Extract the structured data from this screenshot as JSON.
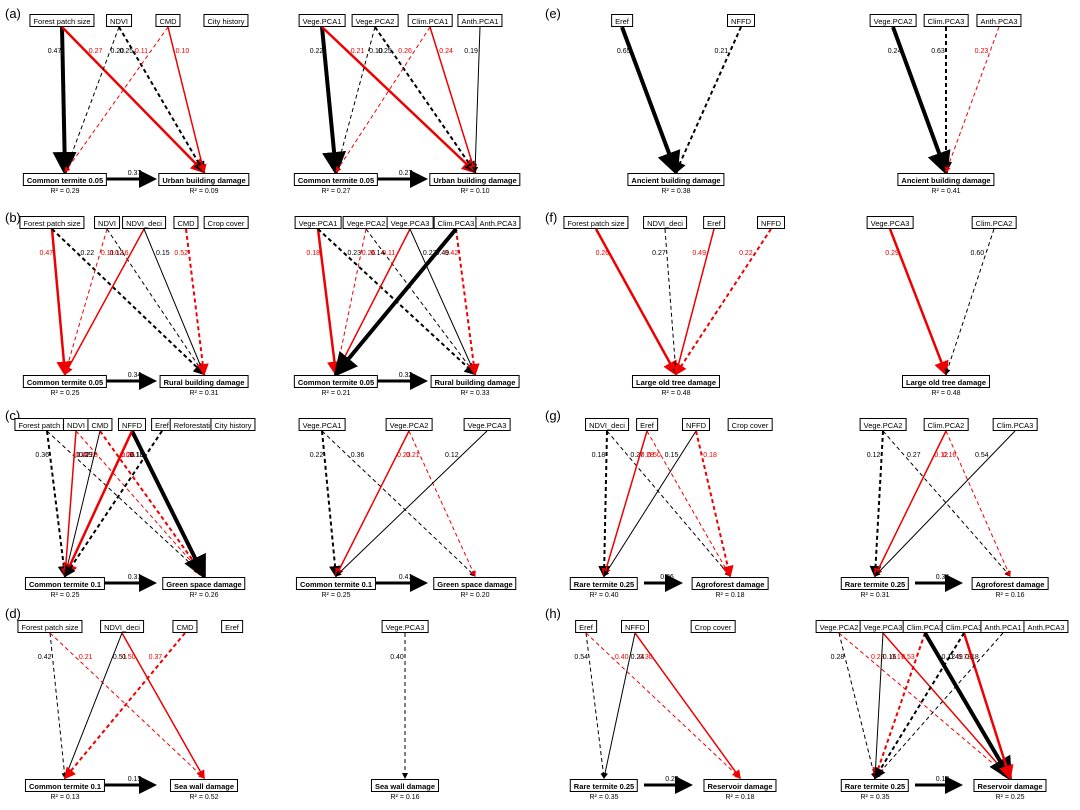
{
  "panel_labels": [
    "(a)",
    "(b)",
    "(c)",
    "(d)",
    "(e)",
    "(f)",
    "(g)",
    "(h)"
  ],
  "rows": [
    {
      "left": {
        "top": [
          "Forest patch size",
          "NDVI",
          "CMD",
          "City history"
        ],
        "mid": "Common termite 0.05",
        "out": "Urban building damage",
        "r2_mid": "R² = 0.29",
        "r2_out": "R² = 0.09",
        "mid_coef": "0.37",
        "coefs": [
          "0.47",
          "0.27",
          "0.25",
          "0.20",
          "0.11",
          "0.10"
        ]
      },
      "right": {
        "top": [
          "Vege.PCA1",
          "Vege.PCA2",
          "Clim.PCA1",
          "Anth.PCA1"
        ],
        "mid": "Common termite 0.05",
        "out": "Urban building damage",
        "r2_mid": "R² = 0.27",
        "r2_out": "R² = 0.10",
        "mid_coef": "0.27",
        "coefs": [
          "0.22",
          "0.21",
          "0.25",
          "0.10",
          "0.26",
          "0.24",
          "0.19"
        ]
      }
    },
    {
      "left": {
        "top": [
          "Forest patch size",
          "NDVI",
          "NDVI_deci",
          "CMD",
          "Crop cover"
        ],
        "mid": "Common termite 0.05",
        "out": "Rural building damage",
        "r2_mid": "R² = 0.25",
        "r2_out": "R² = 0.31",
        "mid_coef": "0.34",
        "coefs": [
          "0.47",
          "0.22",
          "0.12",
          "0.11",
          "0.16",
          "0.15",
          "0.52"
        ]
      },
      "right": {
        "top": [
          "Vege.PCA1",
          "Vege.PCA2",
          "Vege.PCA3",
          "Clim.PCA3",
          "Anth.PCA3"
        ],
        "mid": "Common termite 0.05",
        "out": "Rural building damage",
        "r2_mid": "R² = 0.21",
        "r2_out": "R² = 0.33",
        "mid_coef": "0.32",
        "coefs": [
          "0.18",
          "0.23",
          "0.14",
          "0.26",
          "0.11",
          "0.27",
          "0.42",
          "0.49"
        ]
      }
    },
    {
      "left": {
        "top": [
          "Forest patch size",
          "NDVI",
          "CMD",
          "NFFD",
          "Eref",
          "Reforestation",
          "City history"
        ],
        "mid": "Common termite 0.1",
        "out": "Green space damage",
        "r2_mid": "R² = 0.25",
        "r2_out": "R² = 0.26",
        "mid_coef": "0.31",
        "coefs": [
          "0.36",
          "0.47",
          "0.28",
          "0.12",
          "0.19",
          "0.09",
          "0.10",
          "0.26",
          "0.13"
        ]
      },
      "right": {
        "top": [
          "Vege.PCA1",
          "Vege.PCA2",
          "Vege.PCA3"
        ],
        "mid": "Common termite 0.1",
        "out": "Green space damage",
        "r2_mid": "R² = 0.25",
        "r2_out": "R² = 0.20",
        "mid_coef": "0.41",
        "coefs": [
          "0.22",
          "0.36",
          "0.21",
          "0.23",
          "0.12"
        ]
      }
    },
    {
      "left": {
        "top": [
          "Forest patch size",
          "NDVI_deci",
          "CMD",
          "Eref"
        ],
        "mid": "Common termite 0.1",
        "out": "Sea wall damage",
        "r2_mid": "R² = 0.13",
        "r2_out": "R² = 0.52",
        "mid_coef": "0.15",
        "coefs": [
          "0.42",
          "0.21",
          "0.50",
          "0.51",
          "0.37"
        ]
      },
      "right": {
        "top": [
          "Vege.PCA3"
        ],
        "mid": "",
        "out": "Sea wall damage",
        "r2_mid": "",
        "r2_out": "R² = 0.16",
        "mid_coef": "",
        "coefs": [
          "0.40"
        ]
      }
    }
  ],
  "rows_right": [
    {
      "left": {
        "top": [
          "Eref",
          "NFFD"
        ],
        "out": "Ancient building damage",
        "r2_out": "R² = 0.38",
        "coefs": [
          "0.65",
          "0.21"
        ]
      },
      "right": {
        "top": [
          "Vege.PCA2",
          "Clim.PCA3",
          "Anth.PCA3"
        ],
        "out": "Ancient building damage",
        "r2_out": "R² = 0.41",
        "coefs": [
          "0.24",
          "0.63",
          "0.23"
        ]
      }
    },
    {
      "left": {
        "top": [
          "Forest patch size",
          "NDVI_deci",
          "Eref",
          "NFFD"
        ],
        "out": "Large old tree damage",
        "r2_out": "R² = 0.48",
        "coefs": [
          "0.26",
          "0.27",
          "0.49",
          "0.22"
        ]
      },
      "right": {
        "top": [
          "Vege.PCA3",
          "Clim.PCA2"
        ],
        "out": "Large old tree damage",
        "r2_out": "R² = 0.48",
        "coefs": [
          "0.29",
          "0.60"
        ]
      }
    },
    {
      "left": {
        "top": [
          "NDVI_deci",
          "Eref",
          "NFFD",
          "Crop cover"
        ],
        "mid": "Rare termite 0.25",
        "out": "Agroforest damage",
        "r2_mid": "R² = 0.40",
        "r2_out": "R² = 0.18",
        "mid_coef": "0.26",
        "coefs": [
          "0.18",
          "0.27",
          "0.50",
          "0.28",
          "0.15",
          "0.18"
        ]
      },
      "right": {
        "top": [
          "Vege.PCA2",
          "Clim.PCA2",
          "Clim.PCA3"
        ],
        "mid": "Rare termite 0.25",
        "out": "Agroforest damage",
        "r2_mid": "R² = 0.31",
        "r2_out": "R² = 0.16",
        "mid_coef": "0.34",
        "coefs": [
          "0.12",
          "0.27",
          "0.16",
          "0.12",
          "0.54"
        ]
      }
    },
    {
      "left": {
        "top": [
          "Eref",
          "NFFD",
          "Crop cover"
        ],
        "mid": "Rare termite 0.25",
        "out": "Reservoir damage",
        "r2_mid": "R² = 0.35",
        "r2_out": "R² = 0.18",
        "mid_coef": "0.20",
        "coefs": [
          "0.54",
          "0.40",
          "0.30",
          "0.24"
        ]
      },
      "right": {
        "top": [
          "Vege.PCA2",
          "Vege.PCA3",
          "Clim.PCA3",
          "Clim.PCA3",
          "Anth.PCA1",
          "Anth.PCA3"
        ],
        "mid": "Rare termite 0.25",
        "out": "Reservoir damage",
        "r2_mid": "R² = 0.35",
        "r2_out": "R² = 0.25",
        "mid_coef": "0.10",
        "coefs": [
          "0.28",
          "0.23",
          "0.17",
          "0.16",
          "0.53",
          "0.12",
          "0.73",
          "0.49",
          "0.18"
        ]
      }
    }
  ]
}
